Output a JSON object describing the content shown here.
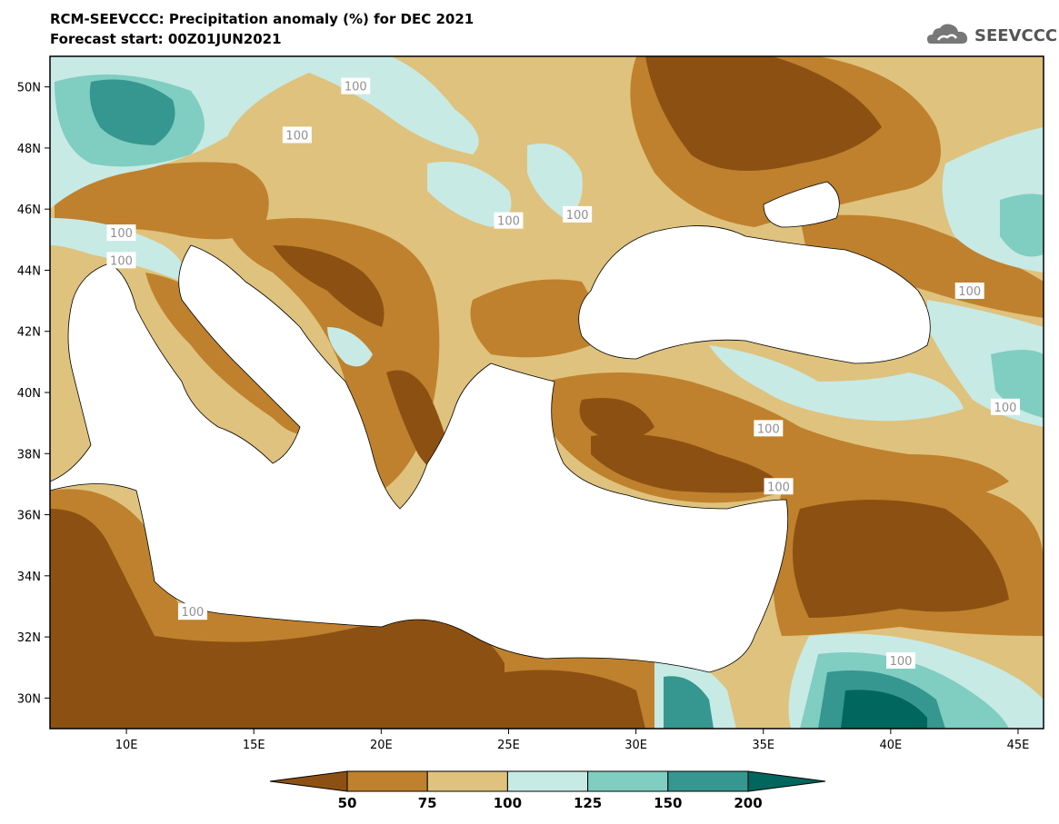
{
  "title": {
    "line1": "RCM-SEEVCCC: Precipitation anomaly (%) for DEC 2021",
    "line2": "Forecast start: 00Z01JUN2021"
  },
  "logo": {
    "text": "SEEVCCC",
    "icon": "cloud-icon"
  },
  "map": {
    "lon_range": [
      7,
      46
    ],
    "lat_range": [
      29,
      51
    ],
    "x_ticks": [
      {
        "lon": 10,
        "label": "10E"
      },
      {
        "lon": 15,
        "label": "15E"
      },
      {
        "lon": 20,
        "label": "20E"
      },
      {
        "lon": 25,
        "label": "25E"
      },
      {
        "lon": 30,
        "label": "30E"
      },
      {
        "lon": 35,
        "label": "35E"
      },
      {
        "lon": 40,
        "label": "40E"
      },
      {
        "lon": 45,
        "label": "45E"
      }
    ],
    "y_ticks": [
      {
        "lat": 50,
        "label": "50N"
      },
      {
        "lat": 48,
        "label": "48N"
      },
      {
        "lat": 46,
        "label": "46N"
      },
      {
        "lat": 44,
        "label": "44N"
      },
      {
        "lat": 42,
        "label": "42N"
      },
      {
        "lat": 40,
        "label": "40N"
      },
      {
        "lat": 38,
        "label": "38N"
      },
      {
        "lat": 36,
        "label": "36N"
      },
      {
        "lat": 34,
        "label": "34N"
      },
      {
        "lat": 32,
        "label": "32N"
      },
      {
        "lat": 30,
        "label": "30N"
      }
    ],
    "contour_labels": [
      {
        "text": "100",
        "lon": 19.0,
        "lat": 50.0
      },
      {
        "text": "100",
        "lon": 16.7,
        "lat": 48.4
      },
      {
        "text": "100",
        "lon": 25.0,
        "lat": 45.6
      },
      {
        "text": "100",
        "lon": 27.7,
        "lat": 45.8
      },
      {
        "text": "100",
        "lon": 9.8,
        "lat": 45.2
      },
      {
        "text": "100",
        "lon": 9.8,
        "lat": 44.3
      },
      {
        "text": "100",
        "lon": 43.1,
        "lat": 43.3
      },
      {
        "text": "100",
        "lon": 35.2,
        "lat": 38.8
      },
      {
        "text": "100",
        "lon": 44.5,
        "lat": 39.5
      },
      {
        "text": "100",
        "lon": 35.6,
        "lat": 36.9
      },
      {
        "text": "100",
        "lon": 12.6,
        "lat": 32.8
      },
      {
        "text": "100",
        "lon": 40.4,
        "lat": 31.2
      }
    ]
  },
  "colorbar": {
    "colors": [
      "#8c5112",
      "#bf812d",
      "#dfc27d",
      "#c7eae5",
      "#80cdc1",
      "#35978f",
      "#01665e"
    ],
    "labels": [
      "50",
      "75",
      "100",
      "125",
      "150",
      "200"
    ]
  }
}
